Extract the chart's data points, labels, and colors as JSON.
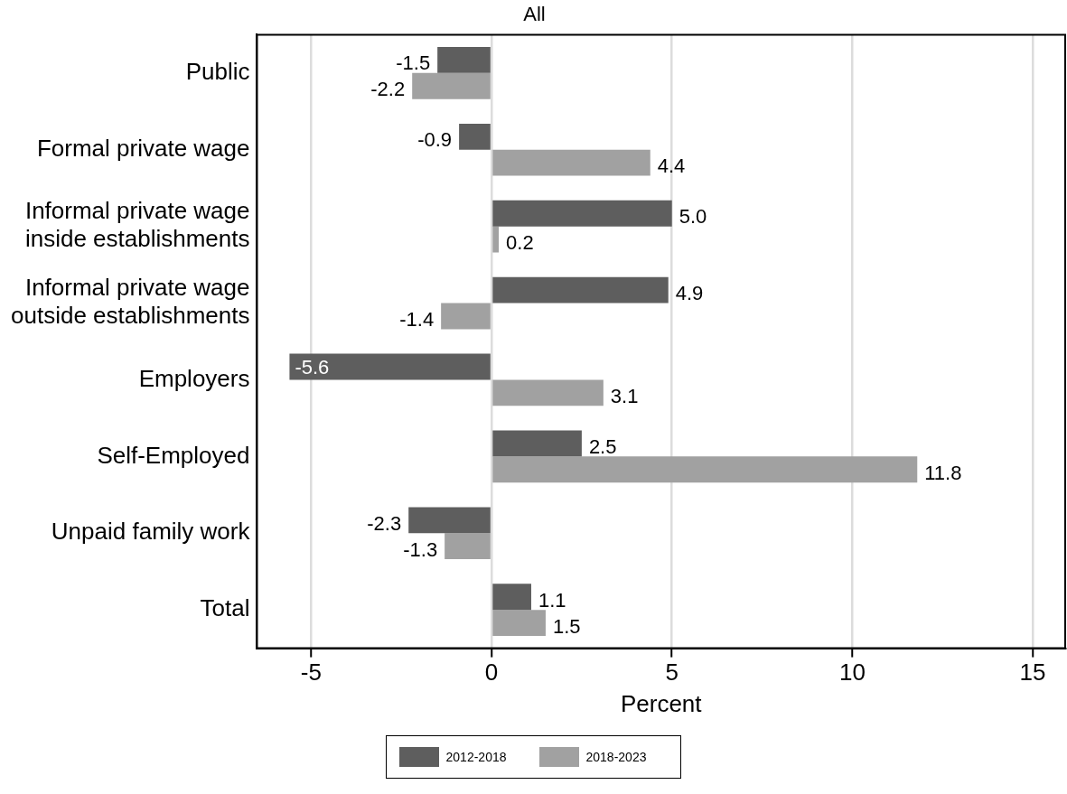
{
  "chart_data": {
    "type": "bar",
    "orientation": "horizontal",
    "title": "All",
    "xlabel": "Percent",
    "categories": [
      "Public",
      "Formal private wage",
      "Informal private wage inside establishments",
      "Informal private wage outside establishments",
      "Employers",
      "Self-Employed",
      "Unpaid family work",
      "Total"
    ],
    "series": [
      {
        "name": "2012-2018",
        "color": "#5e5e5e",
        "values": [
          -1.5,
          -0.9,
          5.0,
          4.9,
          -5.6,
          2.5,
          -2.3,
          1.1
        ],
        "value_labels": [
          "-1.5",
          "-0.9",
          "5.0",
          "4.9",
          "-5.6",
          "2.5",
          "-2.3",
          "1.1"
        ]
      },
      {
        "name": "2018-2023",
        "color": "#a1a1a1",
        "values": [
          -2.2,
          4.4,
          0.2,
          -1.4,
          3.1,
          11.8,
          -1.3,
          1.5
        ],
        "value_labels": [
          "-2.2",
          "4.4",
          "0.2",
          "-1.4",
          "3.1",
          "11.8",
          "-1.3",
          "1.5"
        ]
      }
    ],
    "xlim": [
      -6.5,
      15.9
    ],
    "xticks": [
      -5,
      0,
      5,
      10,
      15
    ],
    "grid": "x",
    "legend": "bottom"
  }
}
